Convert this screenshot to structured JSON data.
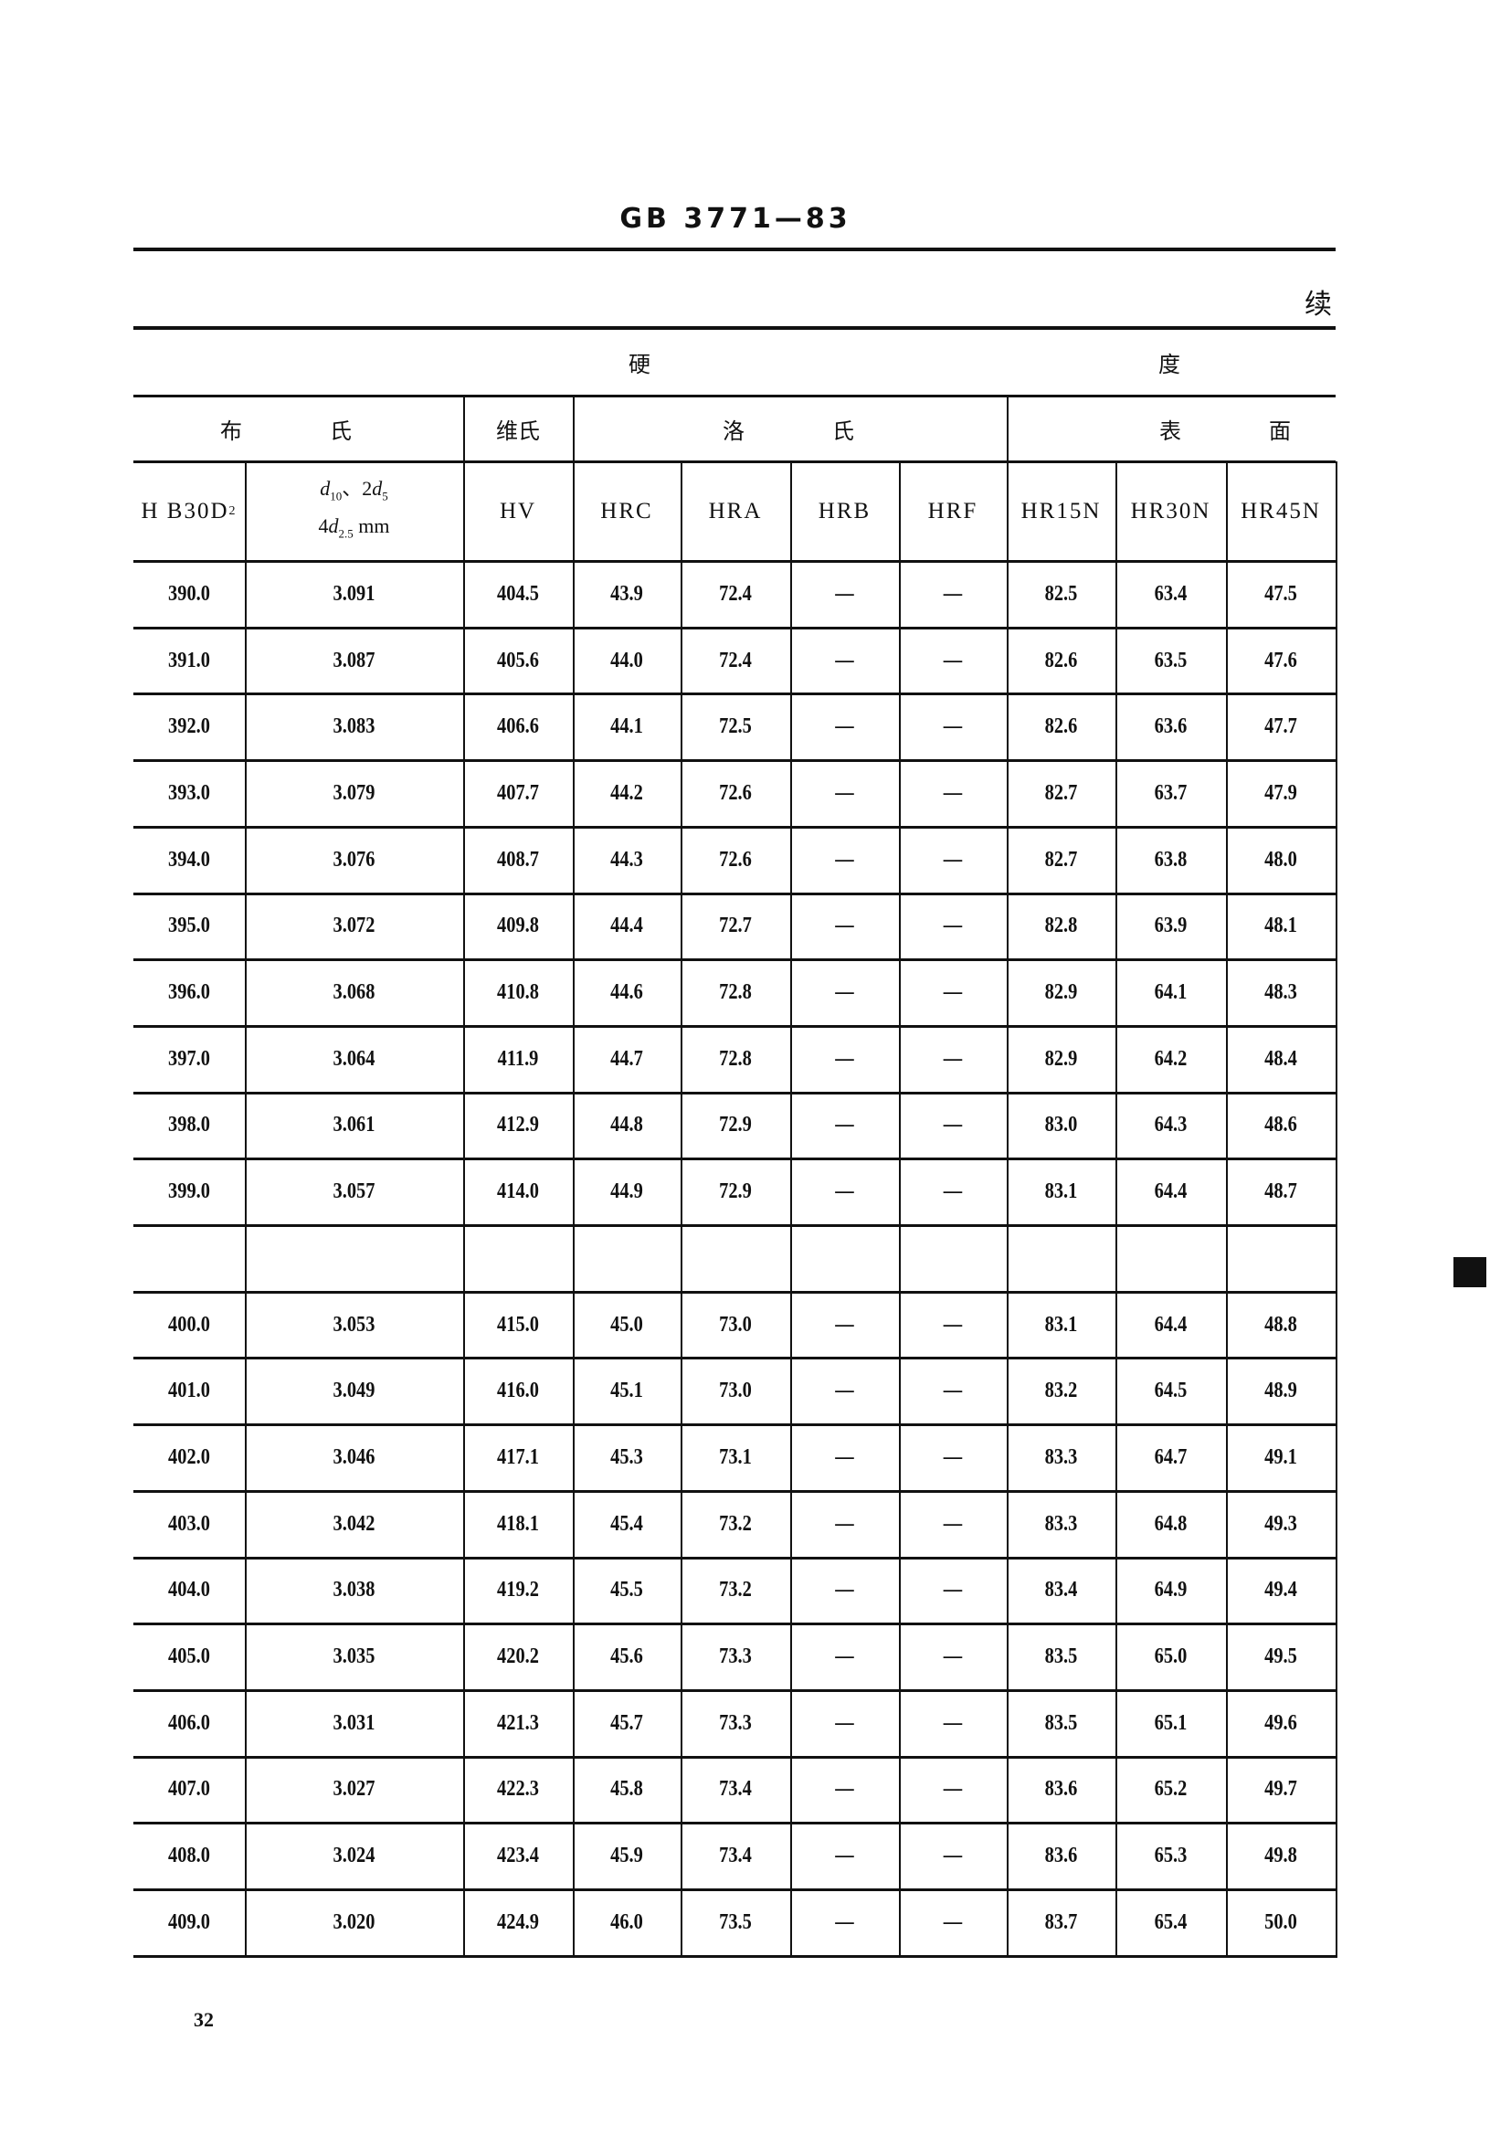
{
  "header": {
    "standard": "GB 3771—83",
    "continued": "续"
  },
  "table": {
    "group_row": {
      "left": "硬",
      "right": "度"
    },
    "method_row": {
      "brinell_1": "布",
      "brinell_2": "氏",
      "vickers": "维氏",
      "rockwell_1": "洛",
      "rockwell_2": "氏",
      "superficial_1": "表",
      "superficial_2": "面"
    },
    "columns": {
      "hb": {
        "text": "H B30D",
        "sup": "2"
      },
      "d": {
        "line1_a": "d",
        "line1_a_sub": "10",
        "line1_b": "、2",
        "line1_c": "d",
        "line1_c_sub": "5",
        "line2_a": "4",
        "line2_b": "d",
        "line2_b_sub": "2.5",
        "line2_unit": " mm"
      },
      "hv": "HV",
      "hrc": "HRC",
      "hra": "HRA",
      "hrb": "HRB",
      "hrf": "HRF",
      "hr15n": "HR15N",
      "hr30n": "HR30N",
      "hr45n": "HR45N"
    },
    "rows": [
      [
        "390.0",
        "3.091",
        "404.5",
        "43.9",
        "72.4",
        "—",
        "—",
        "82.5",
        "63.4",
        "47.5"
      ],
      [
        "391.0",
        "3.087",
        "405.6",
        "44.0",
        "72.4",
        "—",
        "—",
        "82.6",
        "63.5",
        "47.6"
      ],
      [
        "392.0",
        "3.083",
        "406.6",
        "44.1",
        "72.5",
        "—",
        "—",
        "82.6",
        "63.6",
        "47.7"
      ],
      [
        "393.0",
        "3.079",
        "407.7",
        "44.2",
        "72.6",
        "—",
        "—",
        "82.7",
        "63.7",
        "47.9"
      ],
      [
        "394.0",
        "3.076",
        "408.7",
        "44.3",
        "72.6",
        "—",
        "—",
        "82.7",
        "63.8",
        "48.0"
      ],
      [
        "395.0",
        "3.072",
        "409.8",
        "44.4",
        "72.7",
        "—",
        "—",
        "82.8",
        "63.9",
        "48.1"
      ],
      [
        "396.0",
        "3.068",
        "410.8",
        "44.6",
        "72.8",
        "—",
        "—",
        "82.9",
        "64.1",
        "48.3"
      ],
      [
        "397.0",
        "3.064",
        "411.9",
        "44.7",
        "72.8",
        "—",
        "—",
        "82.9",
        "64.2",
        "48.4"
      ],
      [
        "398.0",
        "3.061",
        "412.9",
        "44.8",
        "72.9",
        "—",
        "—",
        "83.0",
        "64.3",
        "48.6"
      ],
      [
        "399.0",
        "3.057",
        "414.0",
        "44.9",
        "72.9",
        "—",
        "—",
        "83.1",
        "64.4",
        "48.7"
      ],
      [
        "",
        "",
        "",
        "",
        "",
        "",
        "",
        "",
        "",
        ""
      ],
      [
        "400.0",
        "3.053",
        "415.0",
        "45.0",
        "73.0",
        "—",
        "—",
        "83.1",
        "64.4",
        "48.8"
      ],
      [
        "401.0",
        "3.049",
        "416.0",
        "45.1",
        "73.0",
        "—",
        "—",
        "83.2",
        "64.5",
        "48.9"
      ],
      [
        "402.0",
        "3.046",
        "417.1",
        "45.3",
        "73.1",
        "—",
        "—",
        "83.3",
        "64.7",
        "49.1"
      ],
      [
        "403.0",
        "3.042",
        "418.1",
        "45.4",
        "73.2",
        "—",
        "—",
        "83.3",
        "64.8",
        "49.3"
      ],
      [
        "404.0",
        "3.038",
        "419.2",
        "45.5",
        "73.2",
        "—",
        "—",
        "83.4",
        "64.9",
        "49.4"
      ],
      [
        "405.0",
        "3.035",
        "420.2",
        "45.6",
        "73.3",
        "—",
        "—",
        "83.5",
        "65.0",
        "49.5"
      ],
      [
        "406.0",
        "3.031",
        "421.3",
        "45.7",
        "73.3",
        "—",
        "—",
        "83.5",
        "65.1",
        "49.6"
      ],
      [
        "407.0",
        "3.027",
        "422.3",
        "45.8",
        "73.4",
        "—",
        "—",
        "83.6",
        "65.2",
        "49.7"
      ],
      [
        "408.0",
        "3.024",
        "423.4",
        "45.9",
        "73.4",
        "—",
        "—",
        "83.6",
        "65.3",
        "49.8"
      ],
      [
        "409.0",
        "3.020",
        "424.9",
        "46.0",
        "73.5",
        "—",
        "—",
        "83.7",
        "65.4",
        "50.0"
      ]
    ]
  },
  "footer": {
    "page_number": "32"
  }
}
